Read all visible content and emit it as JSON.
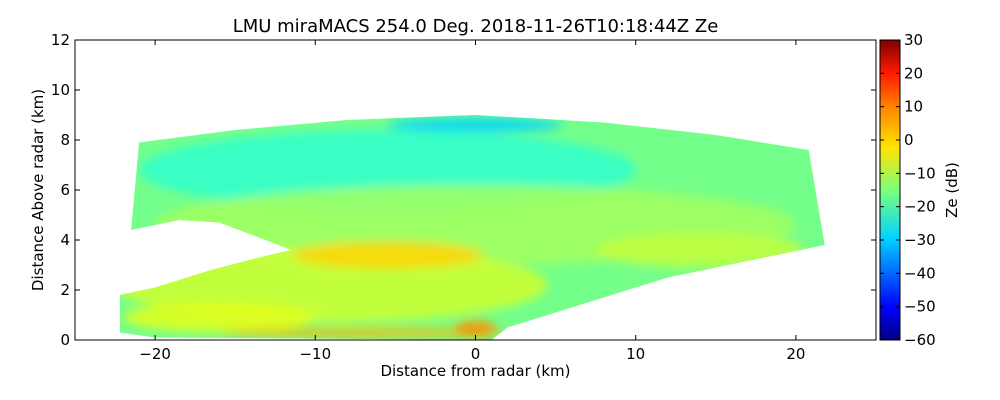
{
  "chart_data": {
    "type": "heatmap",
    "title": "LMU miraMACS 254.0 Deg. 2018-11-26T10:18:44Z  Ze",
    "xlabel": "Distance from radar (km)",
    "ylabel": "Distance Above radar  (km)",
    "xlim": [
      -25,
      25
    ],
    "ylim": [
      0,
      12
    ],
    "x_ticks": [
      -20,
      -10,
      0,
      10,
      20
    ],
    "y_ticks": [
      0,
      2,
      4,
      6,
      8,
      10,
      12
    ],
    "x_tick_labels": [
      "−20",
      "−10",
      "0",
      "10",
      "20"
    ],
    "y_tick_labels": [
      "0",
      "2",
      "4",
      "6",
      "8",
      "10",
      "12"
    ],
    "grid": false,
    "colorbar": {
      "label": "Ze (dB)",
      "range": [
        -60,
        30
      ],
      "ticks": [
        30,
        20,
        10,
        0,
        -10,
        -20,
        -30,
        -40,
        -50,
        -60
      ],
      "tick_labels": [
        "30",
        "20",
        "10",
        "0",
        "−10",
        "−20",
        "−30",
        "−40",
        "−50",
        "−60"
      ],
      "colormap": "jet"
    },
    "echo_outline_km": [
      [
        -22.2,
        0.3
      ],
      [
        -22.2,
        1.8
      ],
      [
        -20.0,
        2.1
      ],
      [
        -16.5,
        2.8
      ],
      [
        -13.5,
        3.3
      ],
      [
        -11.5,
        3.6
      ],
      [
        -13.5,
        4.1
      ],
      [
        -16.0,
        4.7
      ],
      [
        -18.5,
        4.8
      ],
      [
        -21.5,
        4.4
      ],
      [
        -21.0,
        7.9
      ],
      [
        -15.0,
        8.4
      ],
      [
        -8.0,
        8.8
      ],
      [
        0.0,
        9.0
      ],
      [
        8.0,
        8.7
      ],
      [
        15.0,
        8.2
      ],
      [
        20.8,
        7.6
      ],
      [
        21.8,
        3.8
      ],
      [
        12.0,
        2.5
      ],
      [
        2.0,
        0.5
      ],
      [
        1.0,
        0.0
      ],
      [
        -20.0,
        0.1
      ]
    ],
    "echo_zones_km": [
      {
        "x": -5.5,
        "y": 6.8,
        "rx": 15.5,
        "ry": 1.6,
        "ze_db": -22
      },
      {
        "x": 0.0,
        "y": 8.6,
        "rx": 5.5,
        "ry": 0.3,
        "ze_db": -30
      },
      {
        "x": 0.0,
        "y": 4.6,
        "rx": 20.0,
        "ry": 1.6,
        "ze_db": -12
      },
      {
        "x": -9.0,
        "y": 2.2,
        "rx": 13.5,
        "ry": 1.5,
        "ze_db": -8
      },
      {
        "x": -5.5,
        "y": 3.4,
        "rx": 6.0,
        "ry": 0.55,
        "ze_db": 0
      },
      {
        "x": -16.0,
        "y": 0.9,
        "rx": 6.0,
        "ry": 0.6,
        "ze_db": -6
      },
      {
        "x": -7.0,
        "y": 0.3,
        "rx": 9.0,
        "ry": 0.18,
        "ze_db": 3
      },
      {
        "x": 0.0,
        "y": 0.45,
        "rx": 1.3,
        "ry": 0.35,
        "ze_db": 6
      },
      {
        "x": 14.0,
        "y": 3.6,
        "rx": 6.5,
        "ry": 0.7,
        "ze_db": -9
      }
    ]
  }
}
